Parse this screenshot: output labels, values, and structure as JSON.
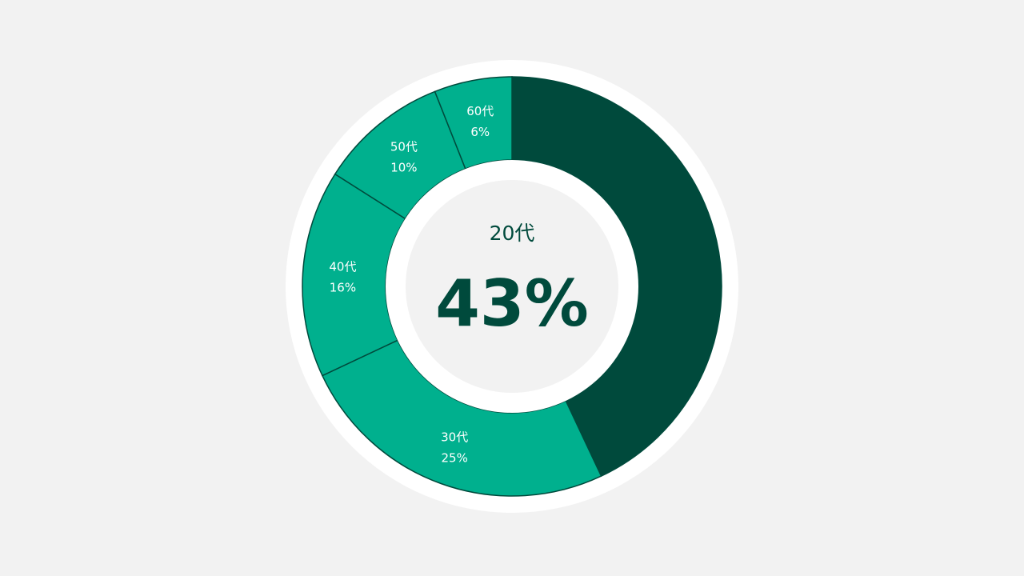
{
  "chart_data": {
    "type": "pie",
    "donut": true,
    "categories": [
      "20代",
      "30代",
      "40代",
      "50代",
      "60代"
    ],
    "values": [
      43,
      25,
      16,
      10,
      6
    ],
    "value_labels": [
      "43%",
      "25%",
      "16%",
      "10%",
      "6%"
    ],
    "colors": [
      "#004a3c",
      "#00b08e",
      "#00b08e",
      "#00b08e",
      "#00b08e"
    ],
    "highlight": {
      "category": "20代",
      "value_label": "43%"
    },
    "start_angle": "12 o'clock",
    "direction": "clockwise"
  },
  "colors": {
    "background": "#f2f2f2",
    "ring": "#ffffff",
    "highlight": "#004a3c",
    "slice": "#00b08e",
    "slice_border": "#004a3c",
    "label": "#ffffff"
  }
}
